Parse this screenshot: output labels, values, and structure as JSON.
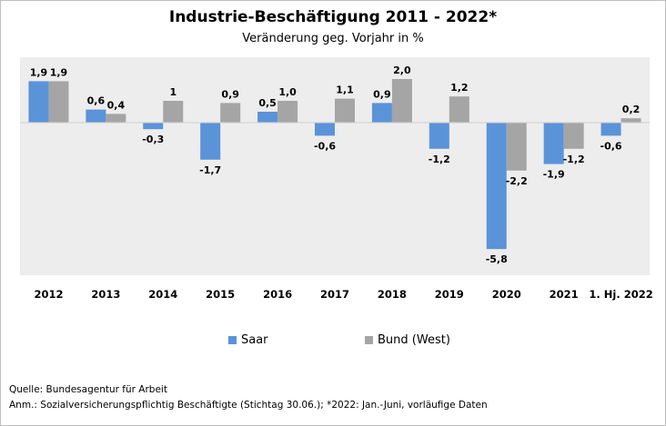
{
  "header": {
    "title": "Industrie-Beschäftigung 2011 - 2022*",
    "subtitle": "Veränderung geg. Vorjahr in %"
  },
  "footer": {
    "source": "Quelle: Bundesagentur für Arbeit",
    "note": "Anm.: Sozialversicherungspflichtig Beschäftigte (Stichtag 30.06.);  *2022: Jan.-Juni, vorläufige Daten"
  },
  "colors": {
    "saar": "#5b93d9",
    "bund": "#a5a5a5",
    "plot_bg": "#ededed"
  },
  "chart_data": {
    "type": "bar",
    "title": "Industrie-Beschäftigung 2011 - 2022*",
    "subtitle": "Veränderung geg. Vorjahr in %",
    "categories": [
      "2012",
      "2013",
      "2014",
      "2015",
      "2016",
      "2017",
      "2018",
      "2019",
      "2020",
      "2021",
      "1. Hj. 2022"
    ],
    "series": [
      {
        "name": "Saar",
        "values": [
          1.9,
          0.6,
          -0.3,
          -1.7,
          0.5,
          -0.6,
          0.9,
          -1.2,
          -5.8,
          -1.9,
          -0.6
        ],
        "labels": [
          "1,9",
          "0,6",
          "-0,3",
          "-1,7",
          "0,5",
          "-0,6",
          "0,9",
          "-1,2",
          "-5,8",
          "-1,9",
          "-0,6"
        ]
      },
      {
        "name": "Bund (West)",
        "values": [
          1.9,
          0.4,
          1.0,
          0.9,
          1.0,
          1.1,
          2.0,
          1.2,
          -2.2,
          -1.2,
          0.2
        ],
        "labels": [
          "1,9",
          "0,4",
          "1",
          "0,9",
          "1,0",
          "1,1",
          "2,0",
          "1,2",
          "-2,2",
          "-1,2",
          "0,2"
        ]
      }
    ],
    "ylim": [
      -7,
      3
    ],
    "legend_position": "bottom",
    "grid": false
  }
}
